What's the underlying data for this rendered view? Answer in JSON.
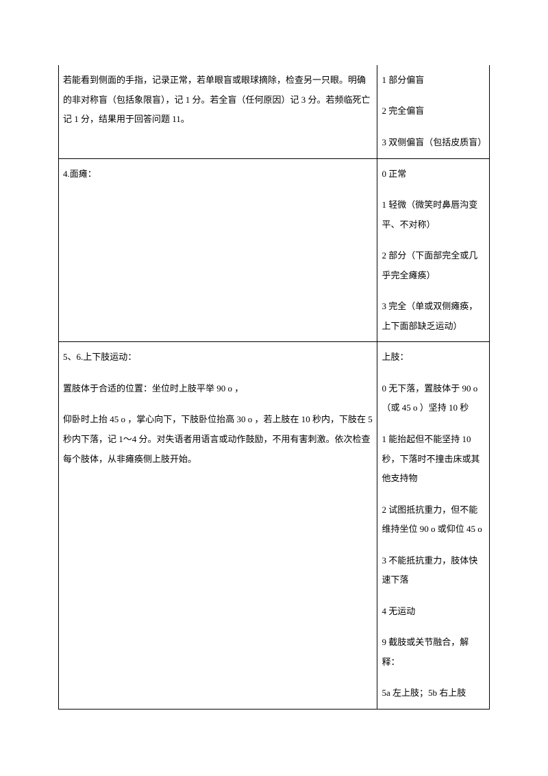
{
  "rows": [
    {
      "left": [
        "若能看到侧面的手指，记录正常，若单眼盲或眼球摘除，检查另一只眼。明确的非对称盲（包括象限盲），记 1 分。若全盲（任何原因）记 3 分。若频临死亡记 1 分，结果用于回答问题 11。"
      ],
      "right": [
        "1  部分偏盲",
        "",
        "2  完全偏盲",
        "",
        "3  双侧偏盲（包括皮质盲）"
      ],
      "noTop": true
    },
    {
      "left": [
        "4.面瘫："
      ],
      "right": [
        "0  正常",
        "",
        "1  轻微（微笑时鼻唇沟变平、不对称）",
        "",
        "2  部分（下面部完全或几乎完全瘫痪）",
        "",
        "3  完全（单或双侧瘫痪，上下面部缺乏运动）"
      ],
      "noTop": false
    },
    {
      "left": [
        "5、6.上下肢运动：",
        "",
        "置肢体于合适的位置：坐位时上肢平举 90 o ，",
        "",
        "仰卧时上抬 45 o ，掌心向下，下肢卧位抬高 30 o ，若上肢在 10 秒内，下肢在 5 秒内下落，记 1～4 分。对失语者用语言或动作鼓励，不用有害刺激。依次检查每个肢体，从非瘫痪侧上肢开始。"
      ],
      "right": [
        "上肢：",
        "",
        "0  无下落，置肢体于 90 o （或 45 o ）坚持 10 秒",
        "",
        "1 能抬起但不能坚持 10 秒，下落时不撞击床或其他支持物",
        "",
        "2  试图抵抗重力，但不能维持坐位 90 o 或仰位 45 o",
        "",
        "3  不能抵抗重力，肢体快速下落",
        "",
        "4  无运动",
        "",
        "9  截肢或关节融合，解释：",
        "",
        "5a 左上肢；5b 右上肢"
      ],
      "noTop": false
    }
  ]
}
